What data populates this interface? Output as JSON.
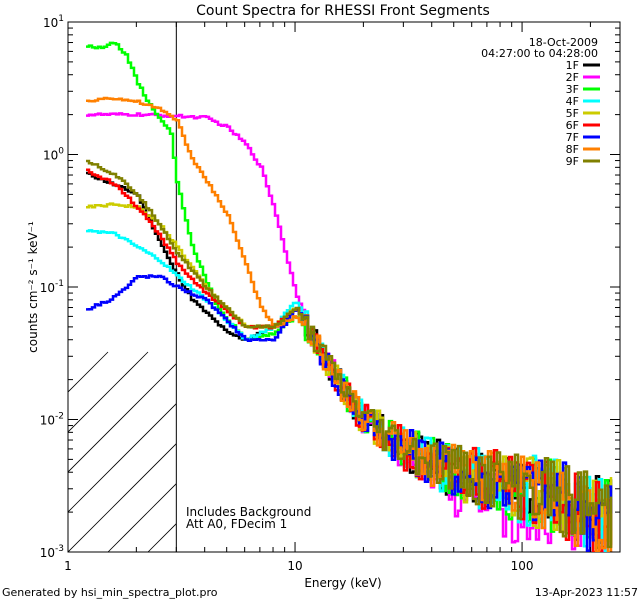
{
  "chart_data": {
    "type": "line",
    "title": "Count Spectra for RHESSI Front Segments",
    "xlabel": "Energy (keV)",
    "ylabel": "counts cm⁻² s⁻¹ keV⁻¹",
    "x_scale": "log",
    "y_scale": "log",
    "xlim": [
      1,
      270
    ],
    "ylim": [
      0.001,
      10
    ],
    "x_ticks": [
      {
        "value": 1,
        "label": "1"
      },
      {
        "value": 10,
        "label": "10"
      },
      {
        "value": 100,
        "label": "100"
      }
    ],
    "y_ticks": [
      {
        "value": 10,
        "base": "10",
        "exp": "1"
      },
      {
        "value": 1,
        "base": "10",
        "exp": "0"
      },
      {
        "value": 0.1,
        "base": "10",
        "exp": "-1"
      },
      {
        "value": 0.01,
        "base": "10",
        "exp": "-2"
      },
      {
        "value": 0.001,
        "base": "10",
        "exp": "-3"
      }
    ],
    "shaded_region": {
      "x_from": 1,
      "x_to": 3,
      "style": "diagonal hatch"
    },
    "vertical_line_x": 3,
    "annotations": {
      "date": "18-Oct-2009",
      "time_range": "04:27:00 to 04:28:00",
      "note1": "Includes Background",
      "note2": "Att A0, FDecim 1"
    },
    "legend_position": "top-right",
    "series": [
      {
        "name": "1F",
        "color": "#000000",
        "x": [
          1.2,
          2.0,
          2.8,
          3.5,
          5,
          6,
          8,
          10,
          12,
          15,
          20,
          30,
          50,
          100,
          150,
          200,
          250
        ],
        "y": [
          0.72,
          0.5,
          0.15,
          0.08,
          0.045,
          0.04,
          0.05,
          0.07,
          0.04,
          0.02,
          0.01,
          0.006,
          0.004,
          0.003,
          0.0025,
          0.002,
          0.0018
        ]
      },
      {
        "name": "2F",
        "color": "#ff00ff",
        "x": [
          1.2,
          2.0,
          3.0,
          4.0,
          5.0,
          6.0,
          7.0,
          8.0,
          9.0,
          10,
          11,
          12,
          15,
          20,
          30,
          50,
          100,
          150,
          200,
          250
        ],
        "y": [
          2.0,
          2.0,
          1.95,
          1.9,
          1.6,
          1.2,
          0.8,
          0.4,
          0.18,
          0.09,
          0.06,
          0.04,
          0.02,
          0.01,
          0.006,
          0.003,
          0.002,
          0.002,
          0.0015,
          0.0012
        ]
      },
      {
        "name": "3F",
        "color": "#00ff00",
        "x": [
          1.2,
          1.4,
          1.6,
          1.8,
          2.0,
          2.4,
          2.8,
          3.0,
          3.5,
          4.5,
          6,
          8,
          10,
          12,
          15,
          20,
          30,
          50,
          100,
          150,
          200,
          250
        ],
        "y": [
          6.5,
          6.5,
          7.0,
          5.5,
          3.5,
          2.0,
          1.5,
          0.6,
          0.2,
          0.07,
          0.04,
          0.045,
          0.06,
          0.04,
          0.02,
          0.01,
          0.006,
          0.004,
          0.003,
          0.0025,
          0.002,
          0.0018
        ]
      },
      {
        "name": "4F",
        "color": "#00ffff",
        "x": [
          1.2,
          1.6,
          2.0,
          2.5,
          3.0,
          4,
          6,
          8,
          10,
          12,
          15,
          20,
          30,
          50,
          100,
          150,
          200,
          250
        ],
        "y": [
          0.27,
          0.25,
          0.2,
          0.16,
          0.12,
          0.08,
          0.04,
          0.05,
          0.08,
          0.04,
          0.02,
          0.01,
          0.006,
          0.004,
          0.003,
          0.0025,
          0.002,
          0.0018
        ]
      },
      {
        "name": "5F",
        "color": "#cccc00",
        "x": [
          1.2,
          1.6,
          2.0,
          2.5,
          3.0,
          4,
          6,
          8,
          10,
          12,
          15,
          20,
          30,
          50,
          100,
          150,
          200,
          250
        ],
        "y": [
          0.4,
          0.42,
          0.4,
          0.3,
          0.2,
          0.1,
          0.05,
          0.05,
          0.07,
          0.04,
          0.02,
          0.01,
          0.006,
          0.004,
          0.003,
          0.0025,
          0.002,
          0.0018
        ]
      },
      {
        "name": "6F",
        "color": "#ff0000",
        "x": [
          1.2,
          1.6,
          2.0,
          2.5,
          3.0,
          4,
          6,
          8,
          10,
          12,
          15,
          20,
          30,
          50,
          100,
          150,
          200,
          250
        ],
        "y": [
          0.75,
          0.6,
          0.4,
          0.25,
          0.15,
          0.09,
          0.05,
          0.05,
          0.07,
          0.04,
          0.02,
          0.01,
          0.006,
          0.004,
          0.003,
          0.0025,
          0.002,
          0.0018
        ]
      },
      {
        "name": "7F",
        "color": "#0000ff",
        "x": [
          1.2,
          1.5,
          1.8,
          2.0,
          2.5,
          3.0,
          4,
          6,
          8,
          10,
          12,
          15,
          20,
          30,
          50,
          100,
          150,
          200,
          250
        ],
        "y": [
          0.068,
          0.08,
          0.1,
          0.12,
          0.12,
          0.1,
          0.08,
          0.04,
          0.04,
          0.07,
          0.04,
          0.02,
          0.01,
          0.006,
          0.004,
          0.003,
          0.0025,
          0.002,
          0.0018
        ]
      },
      {
        "name": "8F",
        "color": "#ff8000",
        "x": [
          1.2,
          1.5,
          2.0,
          2.5,
          3.0,
          3.5,
          4.0,
          5.0,
          6.0,
          7.0,
          8.0,
          10,
          12,
          15,
          20,
          30,
          50,
          100,
          150,
          200,
          250
        ],
        "y": [
          2.5,
          2.7,
          2.5,
          2.2,
          1.8,
          0.9,
          0.65,
          0.35,
          0.15,
          0.07,
          0.05,
          0.06,
          0.04,
          0.02,
          0.01,
          0.006,
          0.004,
          0.003,
          0.0025,
          0.002,
          0.0018
        ]
      },
      {
        "name": "9F",
        "color": "#808000",
        "x": [
          1.2,
          1.6,
          2.0,
          2.5,
          3.0,
          4,
          6,
          8,
          10,
          12,
          15,
          20,
          30,
          50,
          100,
          150,
          200,
          250
        ],
        "y": [
          0.9,
          0.7,
          0.5,
          0.3,
          0.18,
          0.1,
          0.05,
          0.05,
          0.07,
          0.04,
          0.02,
          0.01,
          0.006,
          0.004,
          0.003,
          0.0025,
          0.002,
          0.0018
        ]
      }
    ]
  },
  "footer": {
    "left": "Generated by hsi_min_spectra_plot.pro",
    "right": "13-Apr-2023 11:57"
  }
}
